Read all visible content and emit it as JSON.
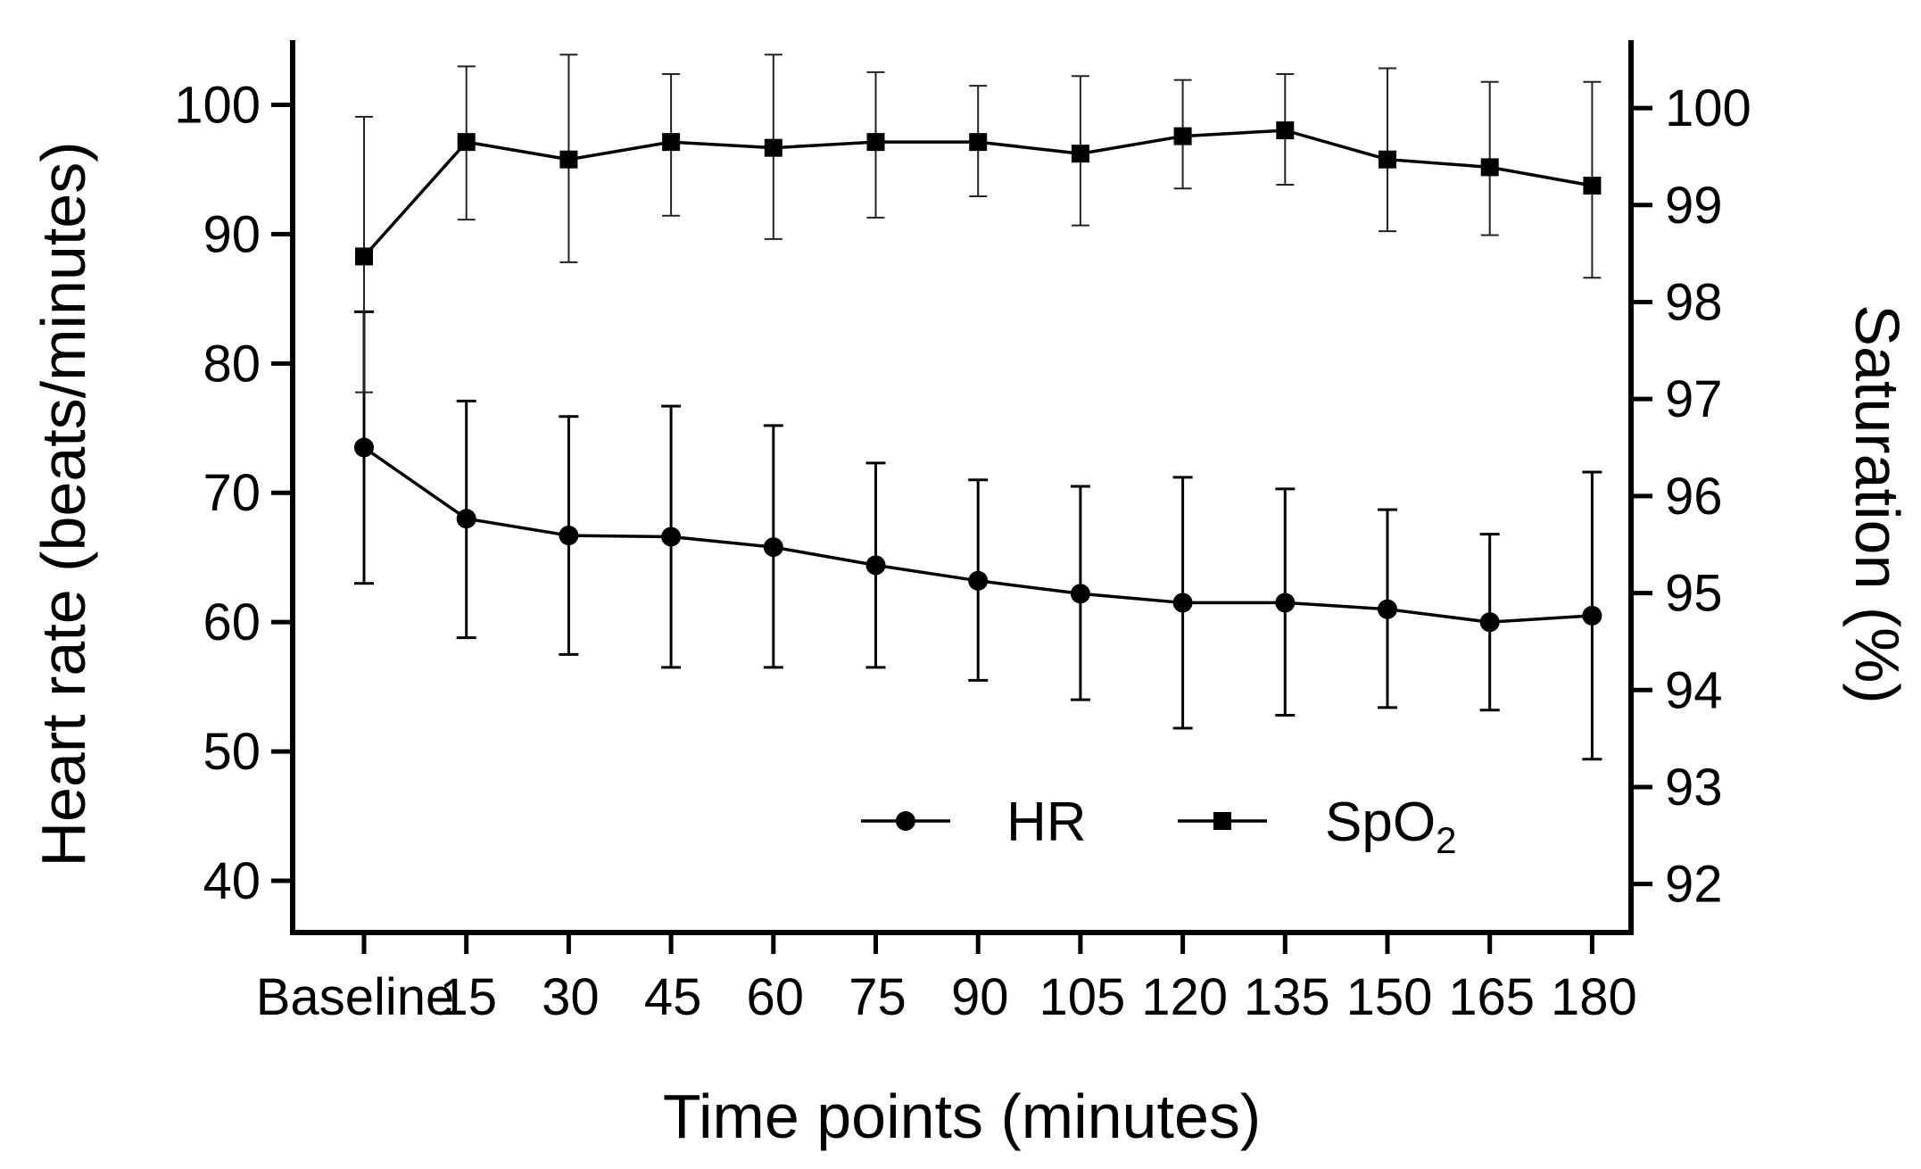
{
  "chart_data": {
    "type": "line",
    "title": "",
    "xlabel": "Time points (minutes)",
    "ylabel": "Heart rate (beats/minutes)",
    "y2label": "Saturation (%)",
    "categories": [
      "Baseline",
      "15",
      "30",
      "45",
      "60",
      "75",
      "90",
      "105",
      "120",
      "135",
      "150",
      "165",
      "180"
    ],
    "ylim": [
      36,
      105
    ],
    "yticks": [
      "40",
      "50",
      "60",
      "70",
      "80",
      "90",
      "100"
    ],
    "y2lim": [
      91.5,
      100.7
    ],
    "y2ticks": [
      "92",
      "93",
      "94",
      "95",
      "96",
      "97",
      "98",
      "99",
      "100"
    ],
    "legend_position": "lower-right",
    "series": [
      {
        "name": "HR",
        "axis": "left",
        "marker": "circle",
        "values": [
          73.5,
          68.0,
          66.7,
          66.6,
          65.8,
          64.4,
          63.2,
          62.2,
          61.5,
          61.5,
          61.0,
          60.0,
          60.5
        ],
        "err_low": [
          63.0,
          58.8,
          57.5,
          56.5,
          56.5,
          56.5,
          55.5,
          54.0,
          51.8,
          52.8,
          53.4,
          53.2,
          49.4
        ],
        "err_high": [
          84.0,
          77.1,
          75.9,
          76.7,
          75.2,
          72.3,
          71.0,
          70.5,
          71.2,
          70.3,
          68.7,
          66.8,
          71.6
        ]
      },
      {
        "name": "SpO",
        "name_subscript": "2",
        "axis": "right",
        "marker": "square",
        "values": [
          98.47,
          99.65,
          99.47,
          99.65,
          99.59,
          99.65,
          99.65,
          99.53,
          99.71,
          99.77,
          99.47,
          99.39,
          99.2
        ],
        "err_low": [
          97.07,
          98.85,
          98.41,
          98.89,
          98.65,
          98.87,
          99.09,
          98.79,
          99.17,
          99.21,
          98.73,
          98.69,
          98.25
        ],
        "err_high": [
          99.91,
          100.43,
          100.55,
          100.35,
          100.55,
          100.37,
          100.23,
          100.33,
          100.29,
          100.35,
          100.41,
          100.27,
          100.27
        ]
      }
    ]
  }
}
